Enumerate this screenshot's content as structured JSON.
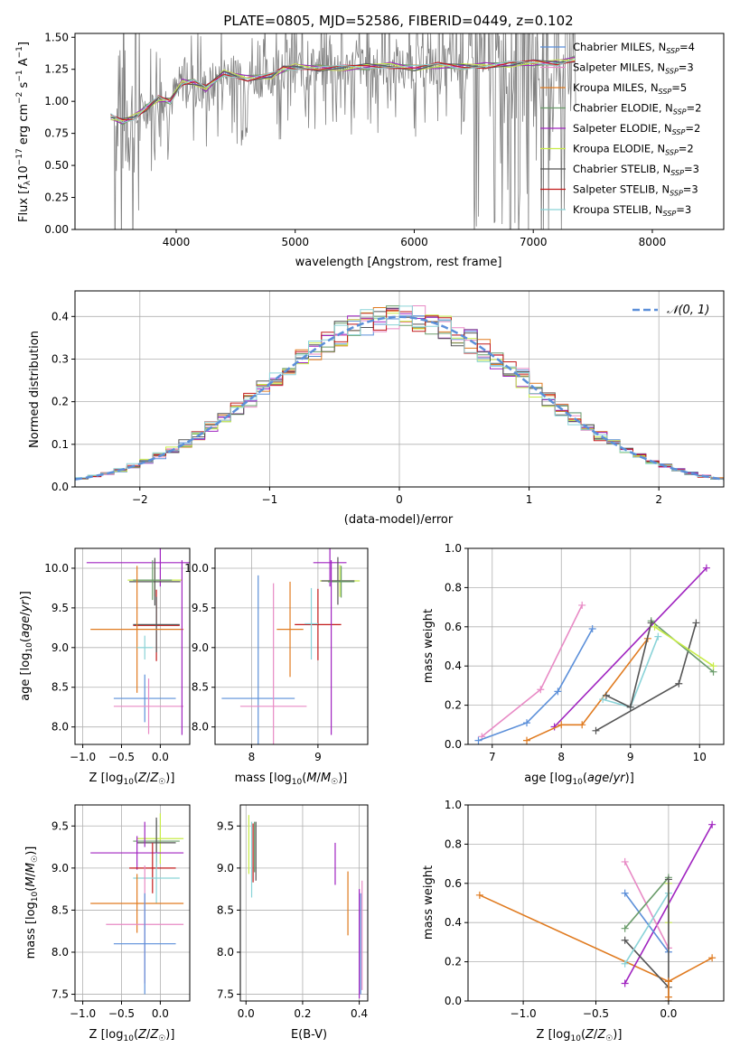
{
  "figure_title": "PLATE=0805, MJD=52586, FIBERID=0449, z=0.102",
  "colors": {
    "chabrier_miles": "#5b8fd9",
    "salpeter_miles": "#e88ac5",
    "kroupa_miles": "#e07b20",
    "chabrier_elodie": "#6a9c6a",
    "salpeter_elodie": "#a024c0",
    "kroupa_elodie": "#c8ec48",
    "chabrier_stelib": "#555555",
    "salpeter_stelib": "#c21a1a",
    "kroupa_stelib": "#8ad3d8",
    "data": "#808080",
    "gaussian": "#5b8fd9",
    "grid": "#b0b0b0"
  },
  "chart_data": [
    {
      "type": "line",
      "title": "PLATE=0805, MJD=52586, FIBERID=0449, z=0.102",
      "xlabel": "wavelength [Angstrom, rest frame]",
      "ylabel": "Flux [f_λ 10^-17 erg cm^-2 s^-1 A^-1]",
      "xlim": [
        3150,
        8600
      ],
      "ylim": [
        0,
        1.53
      ],
      "xticks": [
        4000,
        5000,
        6000,
        7000,
        8000
      ],
      "yticks": [
        0.0,
        0.25,
        0.5,
        0.75,
        1.0,
        1.25,
        1.5
      ],
      "grid": false,
      "legend_position": "top-right",
      "series": [
        {
          "name": "Chabrier MILES, N_SSP=4",
          "key": "chabrier_miles"
        },
        {
          "name": "Salpeter MILES, N_SSP=3",
          "key": "salpeter_miles"
        },
        {
          "name": "Kroupa MILES, N_SSP=5",
          "key": "kroupa_miles"
        },
        {
          "name": "Chabrier ELODIE, N_SSP=2",
          "key": "chabrier_elodie"
        },
        {
          "name": "Salpeter ELODIE, N_SSP=2",
          "key": "salpeter_elodie"
        },
        {
          "name": "Kroupa ELODIE, N_SSP=2",
          "key": "kroupa_elodie"
        },
        {
          "name": "Chabrier STELIB, N_SSP=3",
          "key": "chabrier_stelib"
        },
        {
          "name": "Salpeter STELIB, N_SSP=3",
          "key": "salpeter_stelib"
        },
        {
          "name": "Kroupa STELIB, N_SSP=3",
          "key": "kroupa_stelib"
        }
      ],
      "model_continuum": {
        "x": [
          3450,
          3550,
          3650,
          3750,
          3850,
          3950,
          4050,
          4150,
          4250,
          4400,
          4600,
          4800,
          4900,
          5000,
          5200,
          5400,
          5600,
          5800,
          6000,
          6200,
          6400,
          6600,
          6800,
          7000,
          7200,
          7350
        ],
        "y": [
          0.88,
          0.84,
          0.88,
          0.95,
          1.02,
          1.0,
          1.15,
          1.15,
          1.1,
          1.22,
          1.18,
          1.2,
          1.25,
          1.27,
          1.26,
          1.26,
          1.27,
          1.28,
          1.26,
          1.28,
          1.27,
          1.28,
          1.29,
          1.3,
          1.3,
          1.33
        ]
      }
    },
    {
      "type": "line",
      "xlabel": "(data-model)/error",
      "ylabel": "Normed distribution",
      "xlim": [
        -2.5,
        2.5
      ],
      "ylim": [
        0,
        0.46
      ],
      "xticks": [
        -2,
        -1,
        0,
        1,
        2
      ],
      "yticks": [
        0.0,
        0.1,
        0.2,
        0.3,
        0.4
      ],
      "grid": true,
      "legend_position": "top-right",
      "legend_label": "𝒩(0, 1)"
    },
    {
      "type": "scatter",
      "panel": "age vs metallicity",
      "xlabel": "Z [log10(Z/Z_sun)]",
      "ylabel": "age [log10(age/yr)]",
      "xlim": [
        -1.1,
        0.38
      ],
      "ylim": [
        7.78,
        10.25
      ],
      "xticks": [
        -1.0,
        -0.5,
        0.0
      ],
      "yticks": [
        8.0,
        8.5,
        9.0,
        9.5,
        10.0
      ],
      "grid": true,
      "points": [
        {
          "series": "salpeter_elodie",
          "x": 0.0,
          "y": 10.07,
          "xerr": 0.95,
          "yerr": 0.3
        },
        {
          "series": "kroupa_elodie",
          "x": -0.07,
          "y": 9.85,
          "xerr": 0.35,
          "yerr": 0.2
        },
        {
          "series": "chabrier_stelib",
          "x": -0.07,
          "y": 9.83,
          "xerr": 0.33,
          "yerr": 0.3
        },
        {
          "series": "chabrier_elodie",
          "x": -0.1,
          "y": 9.85,
          "xerr": 0.25,
          "yerr": 0.25
        },
        {
          "series": "salpeter_stelib",
          "x": -0.05,
          "y": 9.28,
          "xerr": 0.3,
          "yerr": 0.45
        },
        {
          "series": "chabrier_stelib",
          "x": -0.05,
          "y": 9.29,
          "xerr": 0.3,
          "yerr": 0.35
        },
        {
          "series": "kroupa_miles",
          "x": -0.3,
          "y": 9.23,
          "xerr": 0.6,
          "yerr": 0.8
        },
        {
          "series": "kroupa_stelib",
          "x": -0.2,
          "y": 9.0,
          "xerr": 0.1,
          "yerr": 0.15
        },
        {
          "series": "chabrier_miles",
          "x": -0.2,
          "y": 8.36,
          "xerr": 0.4,
          "yerr": 0.3
        },
        {
          "series": "salpeter_miles",
          "x": -0.15,
          "y": 8.26,
          "xerr": 0.45,
          "yerr": 0.35
        },
        {
          "series": "salpeter_elodie",
          "x": 0.28,
          "y": 9.0,
          "xerr": 0.0,
          "yerr": 1.1
        }
      ]
    },
    {
      "type": "scatter",
      "panel": "age vs stellar mass",
      "xlabel": "mass [log10(M/M_sun)]",
      "ylabel": "",
      "xlim": [
        7.45,
        9.75
      ],
      "ylim": [
        7.78,
        10.25
      ],
      "xticks": [
        8,
        9
      ],
      "yticks": [
        8.0,
        8.5,
        9.0,
        9.5,
        10.0
      ],
      "grid": true,
      "points": [
        {
          "series": "salpeter_elodie",
          "x": 9.18,
          "y": 10.07,
          "xerr": 0.25,
          "yerr": 0.3
        },
        {
          "series": "kroupa_elodie",
          "x": 9.33,
          "y": 9.84,
          "xerr": 0.3,
          "yerr": 0.2
        },
        {
          "series": "chabrier_stelib",
          "x": 9.3,
          "y": 9.84,
          "xerr": 0.25,
          "yerr": 0.3
        },
        {
          "series": "chabrier_elodie",
          "x": 9.35,
          "y": 9.83,
          "xerr": 0.2,
          "yerr": 0.2
        },
        {
          "series": "salpeter_stelib",
          "x": 9.0,
          "y": 9.29,
          "xerr": 0.35,
          "yerr": 0.45
        },
        {
          "series": "kroupa_miles",
          "x": 8.58,
          "y": 9.23,
          "xerr": 0.2,
          "yerr": 0.6
        },
        {
          "series": "kroupa_stelib",
          "x": 8.9,
          "y": 9.3,
          "xerr": 0.1,
          "yerr": 0.45
        },
        {
          "series": "chabrier_miles",
          "x": 8.1,
          "y": 8.36,
          "xerr": 0.55,
          "yerr": 1.55
        },
        {
          "series": "salpeter_miles",
          "x": 8.33,
          "y": 8.26,
          "xerr": 0.5,
          "yerr": 1.55
        },
        {
          "series": "salpeter_elodie",
          "x": 9.2,
          "y": 9.0,
          "xerr": 0.0,
          "yerr": 1.1
        }
      ]
    },
    {
      "type": "line",
      "panel": "mass weight vs age",
      "xlabel": "age [log10(age/yr)]",
      "ylabel": "mass weight",
      "xlim": [
        6.65,
        10.35
      ],
      "ylim": [
        0.0,
        1.0
      ],
      "xticks": [
        7,
        8,
        9,
        10
      ],
      "yticks": [
        0.0,
        0.2,
        0.4,
        0.6,
        0.8,
        1.0
      ],
      "grid": true,
      "series": [
        {
          "key": "salpeter_miles",
          "x": [
            6.85,
            7.7,
            8.3
          ],
          "y": [
            0.04,
            0.28,
            0.71
          ]
        },
        {
          "key": "chabrier_miles",
          "x": [
            6.8,
            7.5,
            7.95,
            8.45
          ],
          "y": [
            0.02,
            0.11,
            0.27,
            0.59
          ]
        },
        {
          "key": "salpeter_elodie",
          "x": [
            7.9,
            10.1
          ],
          "y": [
            0.09,
            0.9
          ]
        },
        {
          "key": "kroupa_miles",
          "x": [
            7.5,
            8.0,
            8.3,
            9.25
          ],
          "y": [
            0.02,
            0.1,
            0.1,
            0.54
          ]
        },
        {
          "key": "kroupa_stelib",
          "x": [
            8.6,
            9.0,
            9.4
          ],
          "y": [
            0.23,
            0.19,
            0.55
          ]
        },
        {
          "key": "chabrier_stelib",
          "x": [
            8.5,
            9.7,
            9.95
          ],
          "y": [
            0.07,
            0.31,
            0.62
          ]
        },
        {
          "key": "chabrier_elodie",
          "x": [
            9.3,
            10.2
          ],
          "y": [
            0.63,
            0.37
          ]
        },
        {
          "key": "kroupa_elodie",
          "x": [
            9.35,
            10.2
          ],
          "y": [
            0.6,
            0.4
          ]
        },
        {
          "key": "chabrier_stelib",
          "x": [
            8.65,
            9.0,
            9.3
          ],
          "y": [
            0.25,
            0.19,
            0.62
          ]
        }
      ]
    },
    {
      "type": "scatter",
      "panel": "mass vs metallicity",
      "xlabel": "Z [log10(Z/Z_sun)]",
      "ylabel": "mass [log10(M/M_sun)]",
      "xlim": [
        -1.1,
        0.38
      ],
      "ylim": [
        7.42,
        9.75
      ],
      "xticks": [
        -1.0,
        -0.5,
        0.0
      ],
      "yticks": [
        7.5,
        8.0,
        8.5,
        9.0,
        9.5
      ],
      "grid": true,
      "points": [
        {
          "series": "kroupa_elodie",
          "x": 0.0,
          "y": 9.35,
          "xerr": 0.3,
          "yerr": 0.3
        },
        {
          "series": "chabrier_elodie",
          "x": -0.05,
          "y": 9.32,
          "xerr": 0.3,
          "yerr": 0.25
        },
        {
          "series": "chabrier_stelib",
          "x": -0.05,
          "y": 9.3,
          "xerr": 0.25,
          "yerr": 0.3
        },
        {
          "series": "salpeter_elodie",
          "x": -0.3,
          "y": 9.18,
          "xerr": 0.6,
          "yerr": 0.2
        },
        {
          "series": "salpeter_stelib",
          "x": -0.1,
          "y": 9.0,
          "xerr": 0.3,
          "yerr": 0.3
        },
        {
          "series": "kroupa_stelib",
          "x": -0.05,
          "y": 8.88,
          "xerr": 0.3,
          "yerr": 0.3
        },
        {
          "series": "kroupa_miles",
          "x": -0.3,
          "y": 8.58,
          "xerr": 0.6,
          "yerr": 0.35
        },
        {
          "series": "salpeter_miles",
          "x": -0.2,
          "y": 8.33,
          "xerr": 0.5,
          "yerr": 0.7
        },
        {
          "series": "chabrier_miles",
          "x": -0.2,
          "y": 8.1,
          "xerr": 0.4,
          "yerr": 0.6
        },
        {
          "series": "salpeter_elodie",
          "x": -0.2,
          "y": 9.4,
          "xerr": 0.0,
          "yerr": 0.15
        }
      ]
    },
    {
      "type": "scatter",
      "panel": "mass vs extinction",
      "xlabel": "E(B-V)",
      "ylabel": "",
      "xlim": [
        -0.02,
        0.43
      ],
      "ylim": [
        7.42,
        9.75
      ],
      "xticks": [
        0.0,
        0.2,
        0.4
      ],
      "yticks": [
        7.5,
        8.0,
        8.5,
        9.0,
        9.5
      ],
      "grid": true,
      "points": [
        {
          "series": "kroupa_elodie",
          "x": 0.01,
          "y": 9.28,
          "xerr": 0,
          "yerr": 0.35
        },
        {
          "series": "kroupa_stelib",
          "x": 0.02,
          "y": 9.1,
          "xerr": 0,
          "yerr": 0.45
        },
        {
          "series": "salpeter_stelib",
          "x": 0.025,
          "y": 9.18,
          "xerr": 0,
          "yerr": 0.35
        },
        {
          "series": "chabrier_elodie",
          "x": 0.03,
          "y": 9.25,
          "xerr": 0,
          "yerr": 0.3
        },
        {
          "series": "chabrier_stelib",
          "x": 0.035,
          "y": 9.2,
          "xerr": 0,
          "yerr": 0.35
        },
        {
          "series": "salpeter_elodie",
          "x": 0.315,
          "y": 9.05,
          "xerr": 0,
          "yerr": 0.25
        },
        {
          "series": "kroupa_miles",
          "x": 0.36,
          "y": 8.58,
          "xerr": 0,
          "yerr": 0.38
        },
        {
          "series": "salpeter_miles",
          "x": 0.41,
          "y": 8.2,
          "xerr": 0,
          "yerr": 0.65
        },
        {
          "series": "chabrier_miles",
          "x": 0.405,
          "y": 8.1,
          "xerr": 0,
          "yerr": 0.6
        },
        {
          "series": "salpeter_elodie",
          "x": 0.4,
          "y": 8.1,
          "xerr": 0,
          "yerr": 0.65
        }
      ]
    },
    {
      "type": "line",
      "panel": "mass weight vs metallicity",
      "xlabel": "Z [log10(Z/Z_sun)]",
      "ylabel": "mass weight",
      "xlim": [
        -1.38,
        0.38
      ],
      "ylim": [
        0.0,
        1.0
      ],
      "xticks": [
        -1.0,
        -0.5,
        0.0
      ],
      "yticks": [
        0.0,
        0.2,
        0.4,
        0.6,
        0.8,
        1.0
      ],
      "grid": true,
      "series": [
        {
          "key": "kroupa_miles",
          "x": [
            -1.3,
            0.0,
            0.3
          ],
          "y": [
            0.54,
            0.1,
            0.22
          ]
        },
        {
          "key": "salpeter_elodie",
          "x": [
            -0.3,
            0.3
          ],
          "y": [
            0.09,
            0.9
          ]
        },
        {
          "key": "salpeter_miles",
          "x": [
            -0.3,
            0.0
          ],
          "y": [
            0.71,
            0.27
          ]
        },
        {
          "key": "chabrier_miles",
          "x": [
            -0.3,
            0.0
          ],
          "y": [
            0.55,
            0.25
          ]
        },
        {
          "key": "chabrier_elodie",
          "x": [
            -0.3,
            0.0
          ],
          "y": [
            0.37,
            0.63
          ]
        },
        {
          "key": "chabrier_stelib",
          "x": [
            -0.3,
            0.0
          ],
          "y": [
            0.31,
            0.07
          ]
        },
        {
          "key": "kroupa_stelib",
          "x": [
            -0.3,
            0.0
          ],
          "y": [
            0.19,
            0.55
          ]
        },
        {
          "key": "kroupa_elodie",
          "x": [
            0.0,
            0.0
          ],
          "y": [
            0.4,
            0.6
          ]
        },
        {
          "key": "chabrier_stelib",
          "x": [
            0.0,
            0.0
          ],
          "y": [
            0.0,
            0.62
          ]
        },
        {
          "key": "kroupa_miles",
          "x": [
            0.0,
            0.0
          ],
          "y": [
            0.02,
            0.1
          ]
        }
      ]
    }
  ]
}
